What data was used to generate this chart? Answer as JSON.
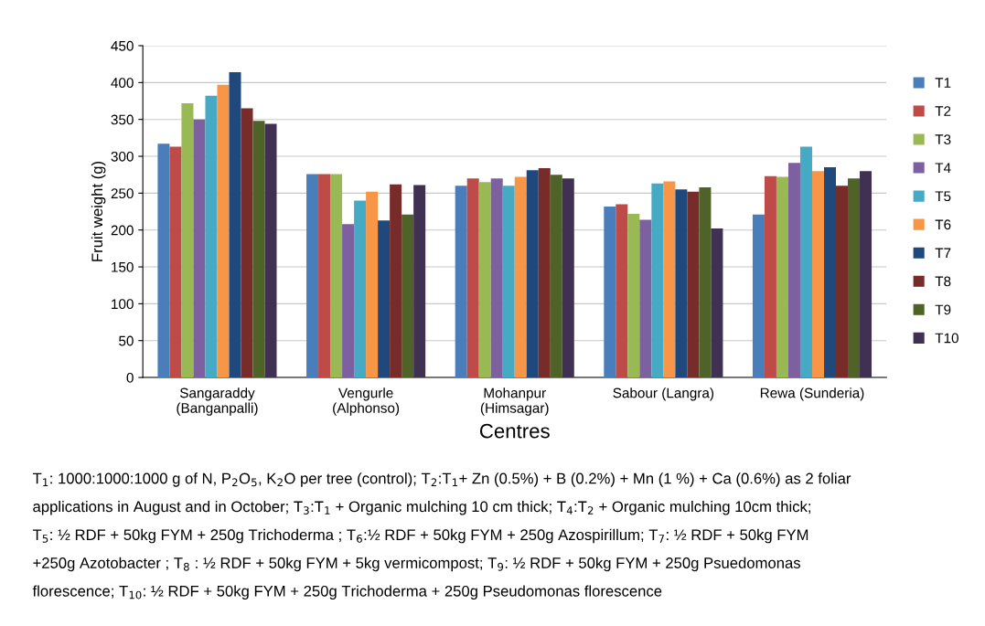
{
  "chart_data": {
    "type": "bar",
    "categories": [
      "Sangaraddy\n(Banganpalli)",
      "Vengurle\n(Alphonso)",
      "Mohanpur\n(Himsagar)",
      "Sabour (Langra)",
      "Rewa (Sunderia)"
    ],
    "xlabel": "Centres",
    "ylabel": "Fruit weight (g)",
    "ylim": [
      0,
      450
    ],
    "yticks": [
      0,
      50,
      100,
      150,
      200,
      250,
      300,
      350,
      400,
      450
    ],
    "grid": "y",
    "legend": "right",
    "series": [
      {
        "name": "T1",
        "color": "#4a7ebb",
        "values": [
          317,
          276,
          260,
          232,
          221
        ]
      },
      {
        "name": "T2",
        "color": "#be4b48",
        "values": [
          313,
          276,
          270,
          235,
          273
        ]
      },
      {
        "name": "T3",
        "color": "#98b954",
        "values": [
          372,
          276,
          265,
          222,
          272
        ]
      },
      {
        "name": "T4",
        "color": "#7d60a0",
        "values": [
          350,
          208,
          270,
          214,
          291
        ]
      },
      {
        "name": "T5",
        "color": "#46aac5",
        "values": [
          382,
          240,
          260,
          263,
          313
        ]
      },
      {
        "name": "T6",
        "color": "#f79646",
        "values": [
          397,
          252,
          272,
          266,
          280
        ]
      },
      {
        "name": "T7",
        "color": "#1f497d",
        "values": [
          414,
          213,
          281,
          255,
          285
        ]
      },
      {
        "name": "T8",
        "color": "#772c2a",
        "values": [
          365,
          262,
          284,
          252,
          260
        ]
      },
      {
        "name": "T9",
        "color": "#4f6228",
        "values": [
          348,
          221,
          275,
          258,
          270
        ]
      },
      {
        "name": "T10",
        "color": "#403152",
        "values": [
          344,
          261,
          270,
          202,
          280
        ]
      }
    ],
    "annotations": [
      "T$_{1}$: 1000:1000:1000 g of N, P$_{2}$O$_{5}$, K$_{2}$O per tree (control); T$_{2}$:T$_{1}$+ Zn (0.5%) + B (0.2%) + Mn (1 %) + Ca (0.6%) as 2 foliar",
      "applications in August and in October; T$_{3}$:T$_{1}$ + Organic mulching 10 cm thick; T$_{4}$:T$_{2}$ + Organic mulching 10cm thick;",
      "T$_{5}$: ½ RDF + 50kg FYM + 250g Trichoderma ; T$_{6}$:½ RDF + 50kg FYM + 250g Azospirillum; T$_{7}$: ½ RDF + 50kg FYM",
      "+250g Azotobacter ; T$_{8}$ : ½ RDF + 50kg FYM + 5kg vermicompost; T$_{9}$: ½ RDF + 50kg FYM + 250g Psuedomonas",
      "florescence; T$_{10}$: ½ RDF + 50kg FYM + 250g Trichoderma + 250g Pseudomonas florescence"
    ]
  }
}
